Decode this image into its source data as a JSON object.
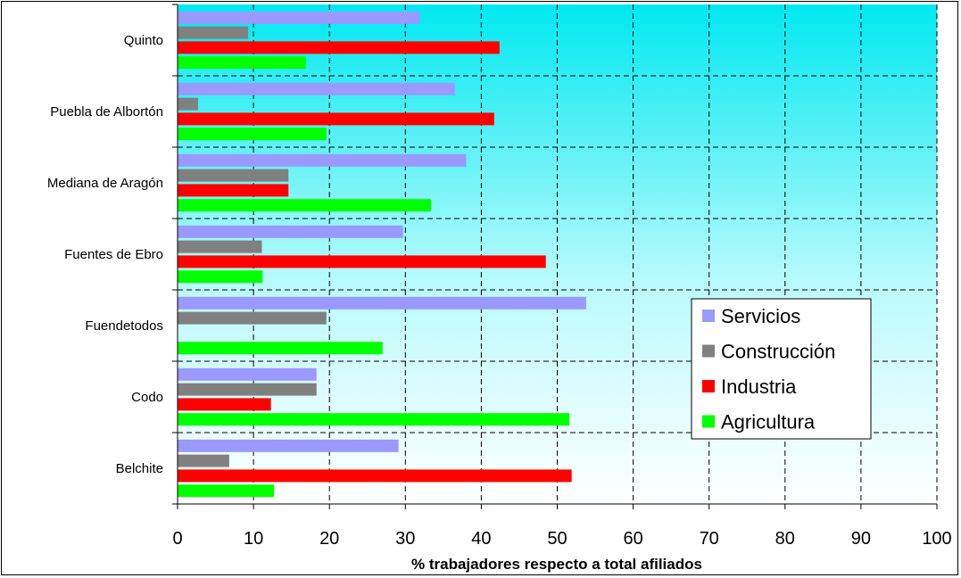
{
  "chart_data": {
    "type": "bar",
    "orientation": "horizontal",
    "categories": [
      "Quinto",
      "Puebla de Albortón",
      "Mediana de Aragón",
      "Fuentes de Ebro",
      "Fuendetodos",
      "Codo",
      "Belchite"
    ],
    "series": [
      {
        "name": "Servicios",
        "color": "#9999ff",
        "values": [
          31.9,
          36.5,
          38.0,
          29.7,
          53.8,
          18.3,
          29.1
        ]
      },
      {
        "name": "Construcción",
        "color": "#808080",
        "values": [
          9.3,
          2.7,
          14.6,
          11.1,
          19.6,
          18.3,
          6.8
        ]
      },
      {
        "name": "Industria",
        "color": "#ff0000",
        "values": [
          42.4,
          41.7,
          14.6,
          48.5,
          0,
          12.3,
          51.9
        ]
      },
      {
        "name": "Agricultura",
        "color": "#00ff00",
        "values": [
          16.9,
          19.6,
          33.4,
          11.2,
          27.0,
          51.6,
          12.7
        ]
      }
    ],
    "xlim": [
      0,
      100
    ],
    "xticks": [
      0,
      10,
      20,
      30,
      40,
      50,
      60,
      70,
      80,
      90,
      100
    ],
    "xlabel": "% trabajadores respecto a total afiliados",
    "grid": true,
    "legend_position": "right"
  }
}
